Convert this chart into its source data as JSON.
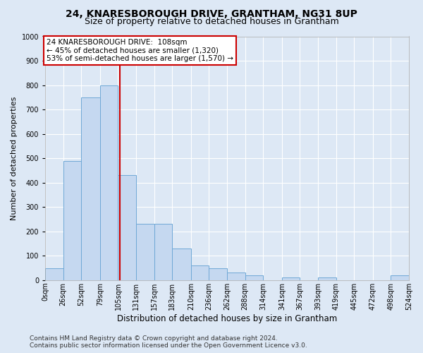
{
  "title": "24, KNARESBOROUGH DRIVE, GRANTHAM, NG31 8UP",
  "subtitle": "Size of property relative to detached houses in Grantham",
  "xlabel": "Distribution of detached houses by size in Grantham",
  "ylabel": "Number of detached properties",
  "bin_edges": [
    0,
    26,
    52,
    79,
    105,
    131,
    157,
    183,
    210,
    236,
    262,
    288,
    314,
    341,
    367,
    393,
    419,
    445,
    472,
    498,
    524
  ],
  "bar_heights": [
    50,
    490,
    750,
    800,
    430,
    230,
    230,
    130,
    60,
    50,
    30,
    20,
    0,
    10,
    0,
    10,
    0,
    0,
    0,
    20
  ],
  "bar_color": "#c5d8f0",
  "bar_edge_color": "#6fa8d6",
  "property_size": 108,
  "annotation_line1": "24 KNARESBOROUGH DRIVE:  108sqm",
  "annotation_line2": "← 45% of detached houses are smaller (1,320)",
  "annotation_line3": "53% of semi-detached houses are larger (1,570) →",
  "annotation_box_color": "#ffffff",
  "annotation_box_edge": "#cc0000",
  "vline_color": "#cc0000",
  "background_color": "#dde8f5",
  "plot_bg_color": "#dde8f5",
  "footer_line1": "Contains HM Land Registry data © Crown copyright and database right 2024.",
  "footer_line2": "Contains public sector information licensed under the Open Government Licence v3.0.",
  "ylim": [
    0,
    1000
  ],
  "yticks": [
    0,
    100,
    200,
    300,
    400,
    500,
    600,
    700,
    800,
    900,
    1000
  ],
  "title_fontsize": 10,
  "subtitle_fontsize": 9,
  "xlabel_fontsize": 8.5,
  "ylabel_fontsize": 8,
  "tick_fontsize": 7,
  "footer_fontsize": 6.5,
  "annotation_fontsize": 7.5
}
